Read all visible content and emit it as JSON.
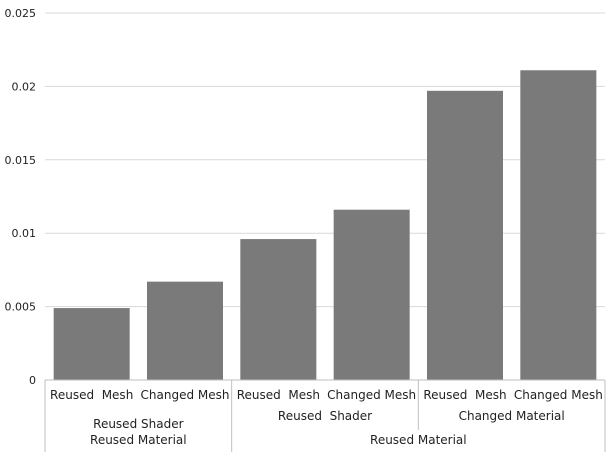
{
  "chart_data": {
    "type": "bar",
    "title": "",
    "xlabel": "",
    "ylabel": "",
    "ylim": [
      0,
      0.025
    ],
    "y_ticks": [
      "0",
      "0.005",
      "0.01",
      "0.015",
      "0.02",
      "0.025"
    ],
    "grid": true,
    "legend": "none",
    "bar_color": "#7a7a7a",
    "categories": [
      "Reused  Mesh",
      "Changed Mesh",
      "Reused  Mesh",
      "Changed Mesh",
      "Reused  Mesh",
      "Changed Mesh"
    ],
    "values": [
      0.0049,
      0.0067,
      0.0096,
      0.0116,
      0.0197,
      0.0211
    ],
    "group_level_1": [
      "Reused Shader",
      "Reused  Shader",
      "Changed Material"
    ],
    "group_level_2": [
      "Reused Material",
      "Reused Material"
    ]
  }
}
